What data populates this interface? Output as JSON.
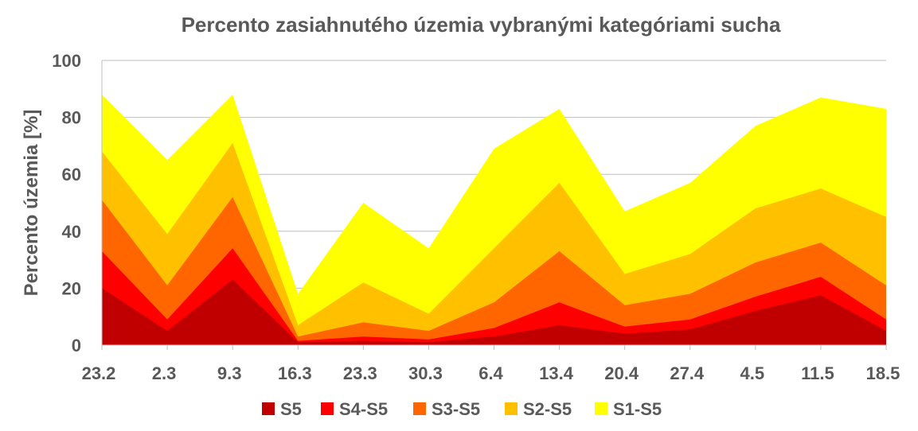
{
  "chart_data": {
    "type": "area",
    "stacked": false,
    "title": "Percento zasiahnutého územia vybranými kategóriami sucha",
    "xlabel": "",
    "ylabel": "Percento územia  [%]",
    "ylim": [
      0,
      100
    ],
    "yticks": [
      0,
      20,
      40,
      60,
      80,
      100
    ],
    "grid": true,
    "legend": "bottom",
    "categories": [
      "23.2",
      "2.3",
      "9.3",
      "16.3",
      "23.3",
      "30.3",
      "6.4",
      "13.4",
      "20.4",
      "27.4",
      "4.5",
      "11.5",
      "18.5"
    ],
    "series": [
      {
        "name": "S1-S5",
        "color": "#FFFF00",
        "values": [
          88,
          65,
          88,
          18,
          50,
          34,
          69,
          83,
          47,
          57,
          77,
          87,
          83
        ]
      },
      {
        "name": "S2-S5",
        "color": "#FFC000",
        "values": [
          68,
          39,
          71,
          7,
          22,
          11,
          34,
          57,
          25,
          32,
          48,
          55,
          45
        ]
      },
      {
        "name": "S3-S5",
        "color": "#FF6600",
        "values": [
          51,
          21,
          52,
          3,
          8,
          5,
          15,
          33,
          14,
          18,
          29,
          36,
          21
        ]
      },
      {
        "name": "S4-S5",
        "color": "#FF0000",
        "values": [
          33,
          9,
          34,
          1.5,
          3,
          2,
          6,
          15,
          6.5,
          9,
          17,
          24,
          9
        ]
      },
      {
        "name": "S5",
        "color": "#C00000",
        "values": [
          20,
          5,
          23,
          1,
          1.5,
          1,
          3,
          7,
          4,
          5.5,
          12,
          17.5,
          5
        ]
      }
    ],
    "legend_order": [
      "S5",
      "S4-S5",
      "S3-S5",
      "S2-S5",
      "S1-S5"
    ]
  }
}
